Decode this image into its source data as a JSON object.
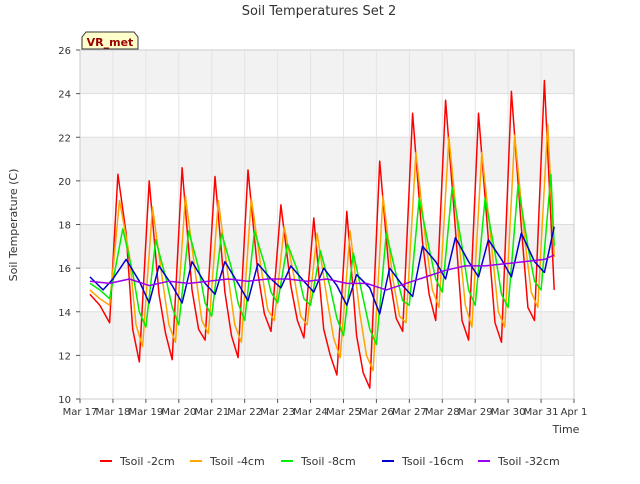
{
  "chart_data": {
    "type": "line",
    "title": "Soil Temperatures Set 2",
    "xlabel": "Time",
    "ylabel": "Soil Temperature (C)",
    "badge": "VR_met",
    "xlim": [
      0,
      15
    ],
    "ylim": [
      10,
      26
    ],
    "x_ticks": [
      {
        "v": 0,
        "label": "Mar 17"
      },
      {
        "v": 1,
        "label": "Mar 18"
      },
      {
        "v": 2,
        "label": "Mar 19"
      },
      {
        "v": 3,
        "label": "Mar 20"
      },
      {
        "v": 4,
        "label": "Mar 21"
      },
      {
        "v": 5,
        "label": "Mar 22"
      },
      {
        "v": 6,
        "label": "Mar 23"
      },
      {
        "v": 7,
        "label": "Mar 24"
      },
      {
        "v": 8,
        "label": "Mar 25"
      },
      {
        "v": 9,
        "label": "Mar 26"
      },
      {
        "v": 10,
        "label": "Mar 27"
      },
      {
        "v": 11,
        "label": "Mar 28"
      },
      {
        "v": 12,
        "label": "Mar 29"
      },
      {
        "v": 13,
        "label": "Mar 30"
      },
      {
        "v": 14,
        "label": "Mar 31"
      },
      {
        "v": 15,
        "label": "Apr 1"
      }
    ],
    "y_ticks": [
      10,
      12,
      14,
      16,
      18,
      20,
      22,
      24,
      26
    ],
    "grid": true,
    "legend_position": "bottom",
    "series": [
      {
        "name": "Tsoil -2cm",
        "color": "#ff0000",
        "x": [
          0.3,
          0.6,
          0.9,
          1.15,
          1.4,
          1.6,
          1.8,
          2.1,
          2.4,
          2.6,
          2.8,
          3.1,
          3.4,
          3.6,
          3.8,
          4.1,
          4.4,
          4.6,
          4.8,
          5.1,
          5.4,
          5.6,
          5.8,
          6.1,
          6.4,
          6.6,
          6.8,
          7.1,
          7.4,
          7.6,
          7.8,
          8.1,
          8.4,
          8.6,
          8.8,
          9.1,
          9.4,
          9.6,
          9.8,
          10.1,
          10.4,
          10.6,
          10.8,
          11.1,
          11.4,
          11.6,
          11.8,
          12.1,
          12.4,
          12.6,
          12.8,
          13.1,
          13.4,
          13.6,
          13.8,
          14.1,
          14.4
        ],
        "y": [
          14.8,
          14.3,
          13.5,
          20.3,
          17.6,
          13.2,
          11.7,
          20.0,
          14.8,
          13.0,
          11.8,
          20.6,
          15.0,
          13.2,
          12.7,
          20.2,
          14.9,
          12.9,
          11.9,
          20.5,
          15.8,
          13.9,
          13.1,
          18.9,
          15.2,
          13.6,
          12.8,
          18.3,
          13.2,
          12.0,
          11.1,
          18.6,
          12.9,
          11.2,
          10.5,
          20.9,
          15.6,
          13.7,
          13.1,
          23.1,
          17.2,
          14.8,
          13.6,
          23.7,
          17.8,
          13.6,
          12.7,
          23.1,
          17.3,
          13.5,
          12.6,
          24.1,
          17.9,
          14.2,
          13.6,
          24.6,
          15.0
        ]
      },
      {
        "name": "Tsoil -4cm",
        "color": "#ffa500",
        "x": [
          0.3,
          0.6,
          0.9,
          1.2,
          1.5,
          1.7,
          1.9,
          2.2,
          2.5,
          2.7,
          2.9,
          3.2,
          3.5,
          3.7,
          3.9,
          4.2,
          4.5,
          4.7,
          4.9,
          5.2,
          5.5,
          5.7,
          5.9,
          6.2,
          6.5,
          6.7,
          6.9,
          7.2,
          7.5,
          7.7,
          7.9,
          8.2,
          8.5,
          8.7,
          8.9,
          9.2,
          9.5,
          9.7,
          9.9,
          10.2,
          10.5,
          10.7,
          10.9,
          11.2,
          11.5,
          11.7,
          11.9,
          12.2,
          12.5,
          12.7,
          12.9,
          13.2,
          13.5,
          13.7,
          13.9,
          14.2,
          14.4
        ],
        "y": [
          15.0,
          14.6,
          14.3,
          19.1,
          16.6,
          13.4,
          12.4,
          18.8,
          15.5,
          13.4,
          12.6,
          19.3,
          15.8,
          13.6,
          13.0,
          19.1,
          15.6,
          13.4,
          12.6,
          19.2,
          16.0,
          14.1,
          13.6,
          17.9,
          15.6,
          13.8,
          13.4,
          17.6,
          14.6,
          12.8,
          11.9,
          17.7,
          13.9,
          12.0,
          11.3,
          19.3,
          15.5,
          13.8,
          13.5,
          21.3,
          17.2,
          15.0,
          14.2,
          22.0,
          17.4,
          14.3,
          13.3,
          21.3,
          17.0,
          14.0,
          13.3,
          22.1,
          17.4,
          14.9,
          14.2,
          22.6,
          16.5
        ]
      },
      {
        "name": "Tsoil -8cm",
        "color": "#00ee00",
        "x": [
          0.3,
          0.6,
          0.9,
          1.3,
          1.6,
          1.8,
          2.0,
          2.3,
          2.6,
          2.8,
          3.0,
          3.3,
          3.6,
          3.8,
          4.0,
          4.3,
          4.6,
          4.8,
          5.0,
          5.3,
          5.6,
          5.8,
          6.0,
          6.3,
          6.6,
          6.8,
          7.0,
          7.3,
          7.6,
          7.8,
          8.0,
          8.3,
          8.6,
          8.8,
          9.0,
          9.3,
          9.6,
          9.8,
          10.0,
          10.3,
          10.6,
          10.8,
          11.0,
          11.3,
          11.6,
          11.8,
          12.0,
          12.3,
          12.6,
          12.8,
          13.0,
          13.3,
          13.6,
          13.8,
          14.0,
          14.3,
          14.4
        ],
        "y": [
          15.3,
          15.0,
          14.6,
          17.8,
          15.8,
          14.0,
          13.3,
          17.3,
          15.6,
          14.2,
          13.4,
          17.7,
          16.0,
          14.4,
          13.8,
          17.6,
          16.0,
          14.4,
          13.6,
          17.7,
          16.2,
          14.9,
          14.4,
          17.1,
          15.9,
          14.6,
          14.3,
          16.8,
          15.1,
          13.7,
          12.9,
          16.7,
          14.6,
          13.2,
          12.5,
          17.6,
          15.7,
          14.5,
          14.3,
          19.2,
          16.9,
          15.5,
          14.9,
          19.7,
          17.0,
          15.0,
          14.3,
          19.2,
          16.7,
          14.8,
          14.2,
          19.8,
          17.0,
          15.4,
          15.0,
          20.3,
          17.0
        ]
      },
      {
        "name": "Tsoil -16cm",
        "color": "#0000cc",
        "x": [
          0.3,
          0.7,
          1.0,
          1.4,
          1.8,
          2.1,
          2.4,
          2.8,
          3.1,
          3.4,
          3.8,
          4.1,
          4.4,
          4.8,
          5.1,
          5.4,
          5.8,
          6.1,
          6.4,
          6.8,
          7.1,
          7.4,
          7.8,
          8.1,
          8.4,
          8.8,
          9.1,
          9.4,
          9.8,
          10.1,
          10.4,
          10.8,
          11.1,
          11.4,
          11.8,
          12.1,
          12.4,
          12.8,
          13.1,
          13.4,
          13.8,
          14.1,
          14.4
        ],
        "y": [
          15.6,
          15.0,
          15.5,
          16.4,
          15.4,
          14.4,
          16.1,
          15.2,
          14.4,
          16.3,
          15.3,
          14.8,
          16.3,
          15.3,
          14.5,
          16.2,
          15.5,
          15.1,
          16.1,
          15.4,
          14.9,
          16.0,
          15.2,
          14.3,
          15.7,
          15.1,
          13.9,
          16.0,
          15.2,
          14.7,
          17.0,
          16.3,
          15.5,
          17.4,
          16.3,
          15.6,
          17.3,
          16.4,
          15.6,
          17.6,
          16.3,
          15.8,
          17.9
        ]
      },
      {
        "name": "Tsoil -32cm",
        "color": "#9900ee",
        "x": [
          0.3,
          0.9,
          1.5,
          2.1,
          2.7,
          3.3,
          3.9,
          4.5,
          5.1,
          5.7,
          6.3,
          6.9,
          7.5,
          8.1,
          8.7,
          9.3,
          9.9,
          10.5,
          11.1,
          11.7,
          12.3,
          12.9,
          13.5,
          14.1,
          14.4
        ],
        "y": [
          15.4,
          15.3,
          15.5,
          15.2,
          15.4,
          15.3,
          15.4,
          15.5,
          15.4,
          15.5,
          15.5,
          15.4,
          15.5,
          15.3,
          15.3,
          15.0,
          15.3,
          15.6,
          15.9,
          16.1,
          16.1,
          16.2,
          16.3,
          16.4,
          16.6
        ]
      }
    ]
  }
}
